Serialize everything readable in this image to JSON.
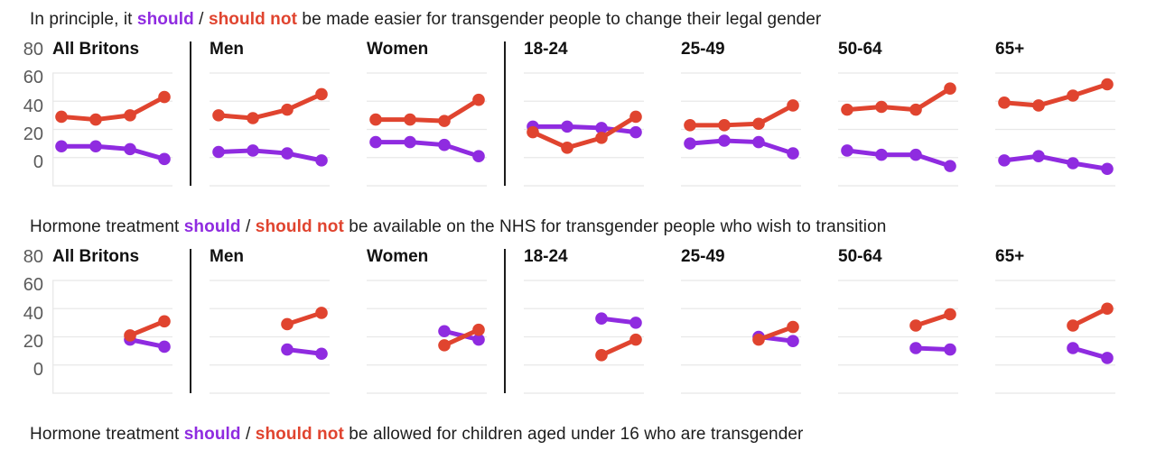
{
  "colors": {
    "should": "#8f2be0",
    "should_not": "#e0442f",
    "grid": "#e8e8e8",
    "axis_text": "#5a5a5a",
    "separator": "#1c1c1c"
  },
  "chart_data": [
    {
      "type": "line",
      "title": "In principle, it should / should not be made easier for transgender people to change their legal gender",
      "title_parts": {
        "prefix": "In principle, it ",
        "should": "should",
        "slash": " / ",
        "should_not": "should not",
        "suffix": " be made easier for transgender people to change their legal gender"
      },
      "y_ticks": [
        80,
        60,
        40,
        20,
        0
      ],
      "ylim": [
        0,
        87
      ],
      "x_point_count": 4,
      "grid": true,
      "legend_position": "none",
      "series_keys": [
        "should",
        "should_not"
      ],
      "separators_after_panels": [
        0,
        2
      ],
      "groups": [
        {
          "label": "All Britons",
          "should": [
            28,
            28,
            26,
            19
          ],
          "should_not": [
            49,
            47,
            50,
            63
          ]
        },
        {
          "label": "Men",
          "should": [
            24,
            25,
            23,
            18
          ],
          "should_not": [
            50,
            48,
            54,
            65
          ]
        },
        {
          "label": "Women",
          "should": [
            31,
            31,
            29,
            21
          ],
          "should_not": [
            47,
            47,
            46,
            61
          ]
        },
        {
          "label": "18-24",
          "should": [
            42,
            42,
            41,
            38
          ],
          "should_not": [
            38,
            27,
            34,
            49
          ]
        },
        {
          "label": "25-49",
          "should": [
            30,
            32,
            31,
            23
          ],
          "should_not": [
            43,
            43,
            44,
            57
          ]
        },
        {
          "label": "50-64",
          "should": [
            25,
            22,
            22,
            14
          ],
          "should_not": [
            54,
            56,
            54,
            69
          ]
        },
        {
          "label": "65+",
          "should": [
            18,
            21,
            16,
            12
          ],
          "should_not": [
            59,
            57,
            64,
            72
          ]
        }
      ]
    },
    {
      "type": "line",
      "title": "Hormone treatment should / should not be available on the NHS for transgender people who wish to transition",
      "title_parts": {
        "prefix": "Hormone treatment ",
        "should": "should",
        "slash": " / ",
        "should_not": "should not",
        "suffix": " be available on the NHS for transgender people who wish to transition"
      },
      "y_ticks": [
        80,
        60,
        40,
        20,
        0
      ],
      "ylim": [
        0,
        87
      ],
      "x_point_count": 4,
      "grid": true,
      "legend_position": "none",
      "series_keys": [
        "should",
        "should_not"
      ],
      "separators_after_panels": [
        0,
        2
      ],
      "groups": [
        {
          "label": "All Britons",
          "should": [
            null,
            null,
            38,
            33
          ],
          "should_not": [
            null,
            null,
            41,
            51
          ]
        },
        {
          "label": "Men",
          "should": [
            null,
            null,
            31,
            28
          ],
          "should_not": [
            null,
            null,
            49,
            57
          ]
        },
        {
          "label": "Women",
          "should": [
            null,
            null,
            44,
            38
          ],
          "should_not": [
            null,
            null,
            34,
            45
          ]
        },
        {
          "label": "18-24",
          "should": [
            null,
            null,
            53,
            50
          ],
          "should_not": [
            null,
            null,
            27,
            38
          ]
        },
        {
          "label": "25-49",
          "should": [
            null,
            null,
            40,
            37
          ],
          "should_not": [
            null,
            null,
            38,
            47
          ]
        },
        {
          "label": "50-64",
          "should": [
            null,
            null,
            32,
            31
          ],
          "should_not": [
            null,
            null,
            48,
            56
          ]
        },
        {
          "label": "65+",
          "should": [
            null,
            null,
            32,
            25
          ],
          "should_not": [
            null,
            null,
            48,
            60
          ]
        }
      ]
    }
  ],
  "footer_title_parts": {
    "prefix": "Hormone treatment ",
    "should": "should",
    "slash": " / ",
    "should_not": "should not",
    "suffix": " be allowed for children aged under 16 who are transgender"
  }
}
